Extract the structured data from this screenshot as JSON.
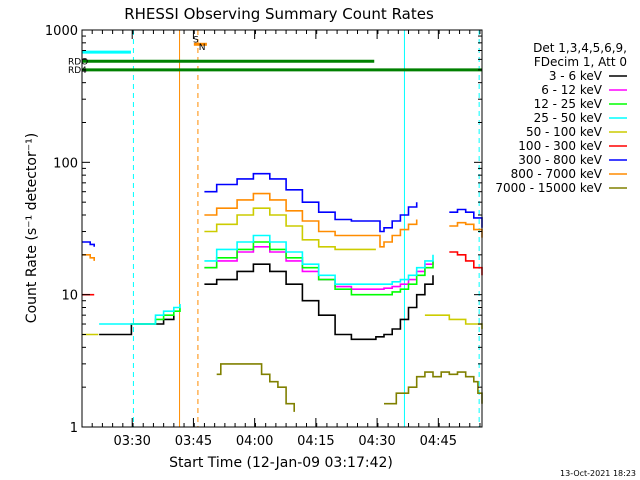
{
  "chart_data": {
    "type": "line",
    "title": "RHESSI Observing Summary Count Rates",
    "xlabel": "Start Time (12-Jan-09 03:17:42)",
    "ylabel": "Count Rate (s⁻¹ detector⁻¹)",
    "yscale": "log",
    "ylim": [
      1,
      1000
    ],
    "xlim_minutes_after_start": [
      0,
      98
    ],
    "x_ticks": [
      {
        "label": "03:30",
        "min": 12.3
      },
      {
        "label": "03:45",
        "min": 27.3
      },
      {
        "label": "04:00",
        "min": 42.3
      },
      {
        "label": "04:15",
        "min": 57.3
      },
      {
        "label": "04:30",
        "min": 72.3
      },
      {
        "label": "04:45",
        "min": 87.3
      }
    ],
    "y_ticks": [
      1,
      10,
      100,
      1000
    ],
    "legend_header": [
      "Det 1,3,4,5,6,9,",
      "FDecim 1, Att 0"
    ],
    "legend_position": "right",
    "series": [
      {
        "name": "3 - 6 keV",
        "color": "#000000",
        "x": [
          0,
          4,
          4.2,
          12,
          12.1,
          18,
          20,
          22.5,
          24,
          24.1,
          27.5,
          28,
          29,
          30,
          33,
          38,
          42,
          46,
          50,
          54,
          58,
          62,
          66,
          70,
          72,
          74,
          76,
          78,
          80,
          82,
          84,
          86
        ],
        "y": [
          null,
          null,
          5,
          5,
          6,
          6,
          6.5,
          7,
          null,
          null,
          null,
          null,
          null,
          12,
          13,
          15,
          17,
          15,
          12,
          9,
          7,
          5,
          4.6,
          4.6,
          4.8,
          5,
          5.5,
          6.5,
          8,
          10,
          12,
          14
        ]
      },
      {
        "name": "6 - 12 keV",
        "color": "#ff00ff",
        "x": [
          30,
          33,
          38,
          42,
          46,
          50,
          54,
          58,
          62,
          66,
          70,
          72,
          74,
          76,
          78,
          80,
          82,
          84,
          86
        ],
        "y": [
          16,
          18,
          21,
          23,
          21,
          18,
          15,
          13,
          11.5,
          11,
          11,
          11,
          11.2,
          11.5,
          12,
          13,
          15,
          17,
          18
        ]
      },
      {
        "name": "12 - 25 keV",
        "color": "#00ff00",
        "x": [
          10,
          12,
          12.1,
          18,
          20,
          22.5,
          24,
          24.1,
          27.5,
          28,
          29,
          30,
          33,
          38,
          42,
          46,
          50,
          54,
          58,
          62,
          66,
          70,
          72,
          74,
          76,
          78,
          80,
          82,
          84,
          86
        ],
        "y": [
          null,
          null,
          6,
          6.5,
          7,
          7.5,
          8,
          null,
          null,
          null,
          null,
          16,
          19,
          22,
          25,
          22,
          19,
          16,
          13,
          11,
          10,
          10,
          10,
          10,
          10.5,
          11,
          12,
          14,
          16,
          18
        ]
      },
      {
        "name": "25 - 50 keV",
        "color": "#00ffff",
        "x": [
          4,
          4.2,
          12,
          12.1,
          18,
          20,
          22.5,
          24,
          24.1,
          27.5,
          28,
          29,
          30,
          33,
          38,
          42,
          46,
          50,
          54,
          58,
          62,
          66,
          70,
          72,
          74,
          76,
          78,
          80,
          82,
          84,
          86
        ],
        "y": [
          null,
          6,
          6,
          6,
          7,
          7.5,
          8,
          8.5,
          null,
          null,
          null,
          null,
          18,
          22,
          25,
          28,
          25,
          21,
          17,
          14,
          12,
          12,
          12,
          12,
          12,
          12.5,
          13,
          14,
          16,
          18,
          20
        ]
      },
      {
        "name": "50 - 100 keV",
        "color": "#cccc00",
        "x": [
          0,
          2,
          4,
          4.2,
          24,
          27.5,
          28,
          29,
          30,
          33,
          38,
          42,
          46,
          50,
          54,
          58,
          62,
          66,
          70,
          72,
          74,
          76,
          78,
          80,
          82,
          84,
          86,
          88,
          90,
          92,
          94,
          96,
          98
        ],
        "y": [
          5,
          5,
          5,
          null,
          null,
          null,
          null,
          null,
          30,
          34,
          40,
          45,
          40,
          33,
          26,
          23,
          22,
          22,
          22,
          22,
          null,
          null,
          null,
          null,
          null,
          7,
          7,
          7,
          6.5,
          6.5,
          6,
          6,
          5.5
        ]
      },
      {
        "name": "100 - 300 keV",
        "color": "#ff0000",
        "x": [
          0,
          2,
          3,
          3.2,
          10,
          12,
          12.1,
          18,
          24,
          24.1,
          27.5,
          28,
          29,
          30,
          33,
          38,
          42,
          46,
          50,
          54,
          58,
          62,
          66,
          70,
          72,
          73,
          74,
          76,
          78,
          80,
          82,
          84,
          86,
          88,
          90,
          92,
          94,
          96,
          98
        ],
        "y": [
          10,
          10,
          10,
          null,
          null,
          null,
          null,
          null,
          null,
          null,
          null,
          null,
          null,
          null,
          null,
          null,
          null,
          null,
          null,
          null,
          null,
          null,
          null,
          null,
          null,
          null,
          null,
          null,
          null,
          null,
          null,
          null,
          null,
          null,
          21,
          20,
          18,
          16,
          14
        ]
      },
      {
        "name": "300 - 800 keV",
        "color": "#0000ff",
        "x": [
          0,
          2,
          3,
          3.2,
          10,
          12,
          12.1,
          18,
          24,
          24.1,
          27.5,
          28,
          29,
          30,
          33,
          38,
          42,
          46,
          50,
          54,
          58,
          62,
          66,
          70,
          72,
          73,
          74,
          76,
          78,
          80,
          82,
          84,
          86,
          88,
          90,
          92,
          94,
          96,
          98
        ],
        "y": [
          25,
          24,
          23,
          null,
          null,
          null,
          null,
          null,
          null,
          null,
          null,
          null,
          null,
          60,
          68,
          75,
          82,
          75,
          62,
          50,
          42,
          37,
          36,
          36,
          36,
          30,
          32,
          36,
          40,
          46,
          50,
          null,
          null,
          null,
          42,
          44,
          42,
          38,
          32
        ]
      },
      {
        "name": "800 - 7000 keV",
        "color": "#ff8c00",
        "x": [
          0,
          2,
          3,
          3.2,
          10,
          12,
          12.1,
          18,
          24,
          24.1,
          27.5,
          28,
          29,
          30,
          33,
          38,
          42,
          46,
          50,
          54,
          58,
          62,
          66,
          70,
          72,
          73,
          74,
          76,
          78,
          80,
          82,
          84,
          86,
          88,
          90,
          92,
          94,
          96,
          98
        ],
        "y": [
          20,
          19,
          18,
          null,
          null,
          null,
          null,
          null,
          null,
          null,
          null,
          null,
          null,
          40,
          45,
          52,
          58,
          52,
          43,
          36,
          30,
          28,
          28,
          28,
          28,
          23,
          25,
          28,
          31,
          34,
          37,
          null,
          null,
          null,
          33,
          35,
          34,
          31,
          27
        ]
      },
      {
        "name": "7000 - 15000 keV",
        "color": "#808000",
        "x": [
          29,
          30,
          33,
          34,
          36,
          38,
          40,
          41,
          42,
          44,
          46,
          47,
          48,
          50,
          52,
          52.1,
          73,
          74,
          76,
          77,
          80,
          82,
          84,
          86,
          88,
          90,
          92,
          94,
          96,
          97,
          98
        ],
        "y": [
          null,
          null,
          2.5,
          3,
          3,
          3,
          3,
          3,
          3,
          2.5,
          2.2,
          2.2,
          2,
          1.5,
          1.3,
          null,
          null,
          1.5,
          1.5,
          1.8,
          2,
          2.4,
          2.6,
          2.4,
          2.6,
          2.5,
          2.6,
          2.4,
          2.2,
          1.8,
          1.5
        ]
      }
    ],
    "flags": [
      {
        "name": "SAA",
        "label": "S",
        "color": "#ff8c00",
        "level": 780,
        "x": [
          27.4,
          30.6
        ],
        "label_x": 27.2
      },
      {
        "name": "Night",
        "label": "N",
        "color": "#00ffff",
        "level": 680,
        "x": [
          0,
          12.0
        ],
        "label_x": 28.6
      },
      {
        "name": "RDO",
        "label": "RDO",
        "color": "#008000",
        "level": 580,
        "x": [
          0,
          71.6
        ]
      },
      {
        "name": "RD4",
        "label": "RD4",
        "color": "#008000",
        "level": 500,
        "x": [
          0,
          98
        ]
      }
    ],
    "verticals": [
      {
        "x": 12.6,
        "color": "#00ffff",
        "dashed": true
      },
      {
        "x": 79.0,
        "color": "#00ffff",
        "dashed": false
      },
      {
        "x": 23.9,
        "color": "#ff8c00",
        "dashed": false
      },
      {
        "x": 28.4,
        "color": "#ff8c00",
        "dashed": true
      },
      {
        "x": 97.3,
        "color": "#00ffff",
        "dashed": true
      }
    ],
    "footer_date": "13-Oct-2021 18:23"
  }
}
